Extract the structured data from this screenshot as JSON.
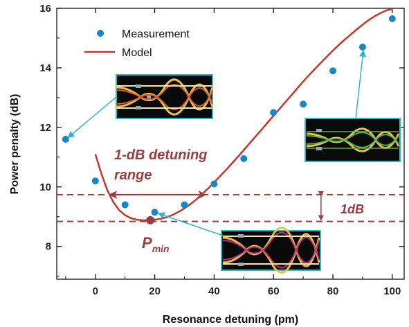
{
  "chart_data": {
    "type": "scatter",
    "title": "",
    "xlabel": "Resonance detuning (pm)",
    "ylabel": "Power penalty (dB)",
    "xlim": [
      -13,
      104
    ],
    "ylim": [
      6.9,
      16
    ],
    "xticks": [
      0,
      20,
      40,
      60,
      80,
      100
    ],
    "yticks": [
      8,
      10,
      12,
      14,
      16
    ],
    "grid": false,
    "legend_position": "top-left",
    "series": [
      {
        "name": "Measurement",
        "kind": "scatter",
        "color": "#1a86c8",
        "x": [
          -10,
          0,
          10,
          20,
          30,
          40,
          50,
          60,
          70,
          80,
          90,
          100
        ],
        "y": [
          11.6,
          10.2,
          9.4,
          9.15,
          9.4,
          10.1,
          10.95,
          12.5,
          12.78,
          13.9,
          14.7,
          15.65
        ]
      },
      {
        "name": "Model",
        "kind": "line",
        "color": "#c0392b",
        "x": [
          0,
          2,
          4,
          6,
          8,
          10,
          12,
          14,
          16,
          18,
          20,
          22,
          24,
          26,
          28,
          30,
          32,
          34,
          36,
          38,
          40,
          42,
          44,
          46,
          48,
          50,
          52,
          54,
          56,
          58,
          60,
          62,
          64,
          66,
          68,
          70,
          72,
          74,
          76,
          78,
          80,
          82,
          84,
          86,
          88,
          90,
          92,
          94,
          96,
          98,
          100
        ],
        "y": [
          11.1,
          10.45,
          9.9,
          9.5,
          9.22,
          9.05,
          8.95,
          8.9,
          8.88,
          8.88,
          8.9,
          8.93,
          8.98,
          9.06,
          9.16,
          9.28,
          9.42,
          9.58,
          9.76,
          9.95,
          10.15,
          10.36,
          10.57,
          10.79,
          11.01,
          11.24,
          11.47,
          11.7,
          11.93,
          12.16,
          12.39,
          12.62,
          12.85,
          13.08,
          13.31,
          13.54,
          13.76,
          13.97,
          14.18,
          14.38,
          14.58,
          14.77,
          14.95,
          15.12,
          15.29,
          15.45,
          15.6,
          15.73,
          15.84,
          15.93,
          15.98
        ]
      }
    ],
    "annotations": {
      "range_label_line1": "1-dB detuning",
      "range_label_line2": "range",
      "db_label": "1dB",
      "pmin_main": "P",
      "pmin_sub": "min",
      "pmin_point": {
        "x": 18.5,
        "y": 8.88
      },
      "upper_level": 9.74,
      "lower_level": 8.84,
      "range_x": [
        5,
        37
      ]
    },
    "colors": {
      "marker": "#1a86c8",
      "model": "#c0392b",
      "annotation": "#9b3d3d",
      "arrow": "#2bb8c4",
      "inset_border": "#2bb8c4"
    }
  }
}
